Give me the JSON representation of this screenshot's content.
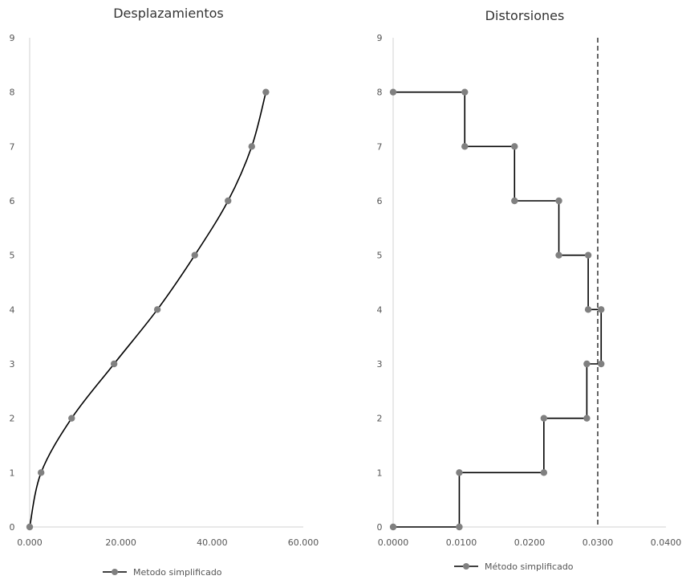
{
  "chart_data": [
    {
      "type": "line",
      "title": "Desplazamientos",
      "xlabel": "",
      "ylabel": "",
      "xlim": [
        0,
        60
      ],
      "ylim": [
        0,
        9
      ],
      "x_ticks": [
        "0.000",
        "20.000",
        "40.000",
        "60.000"
      ],
      "y_ticks": [
        "0",
        "1",
        "2",
        "3",
        "4",
        "5",
        "6",
        "7",
        "8",
        "9"
      ],
      "grid": false,
      "legend": "bottom",
      "series": [
        {
          "name": "Metodo simplificado",
          "color": "#000000",
          "marker_color": "#808080",
          "x": [
            0.0,
            2.5,
            9.2,
            18.5,
            28.0,
            36.2,
            43.5,
            48.7,
            51.8
          ],
          "y": [
            0,
            1,
            2,
            3,
            4,
            5,
            6,
            7,
            8
          ]
        }
      ]
    },
    {
      "type": "line",
      "title": "Distorsiones",
      "xlabel": "",
      "ylabel": "",
      "xlim": [
        0,
        0.04
      ],
      "ylim": [
        0,
        9
      ],
      "x_ticks": [
        "0.0000",
        "0.0100",
        "0.0200",
        "0.0300",
        "0.0400"
      ],
      "y_ticks": [
        "0",
        "1",
        "2",
        "3",
        "4",
        "5",
        "6",
        "7",
        "8",
        "9"
      ],
      "grid": false,
      "legend": "bottom",
      "limit_line": {
        "x": 0.03,
        "style": "dashed",
        "color": "#666666"
      },
      "series": [
        {
          "name": "Método simplificado",
          "color": "#000000",
          "marker_color": "#808080",
          "x": [
            0.0,
            0.0097,
            0.0097,
            0.0221,
            0.0221,
            0.0284,
            0.0284,
            0.0305,
            0.0305,
            0.0286,
            0.0286,
            0.0243,
            0.0243,
            0.0178,
            0.0178,
            0.0105,
            0.0105,
            0.0
          ],
          "y": [
            0,
            0,
            1,
            1,
            2,
            2,
            3,
            3,
            4,
            4,
            5,
            5,
            6,
            6,
            7,
            7,
            8,
            8
          ]
        }
      ]
    }
  ]
}
